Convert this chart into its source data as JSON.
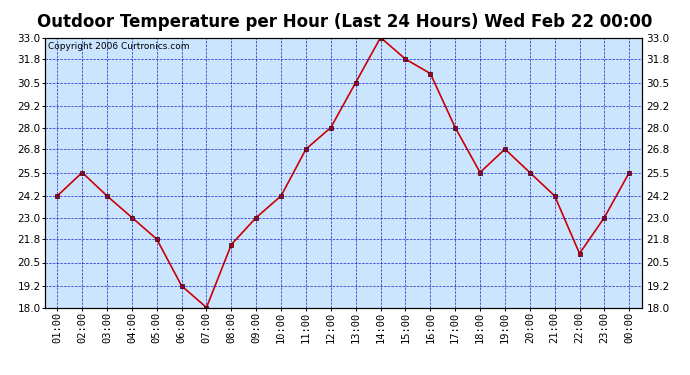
{
  "title": "Outdoor Temperature per Hour (Last 24 Hours) Wed Feb 22 00:00",
  "copyright": "Copyright 2006 Curtronics.com",
  "x_labels": [
    "01:00",
    "02:00",
    "03:00",
    "04:00",
    "05:00",
    "06:00",
    "07:00",
    "08:00",
    "09:00",
    "10:00",
    "11:00",
    "12:00",
    "13:00",
    "14:00",
    "15:00",
    "16:00",
    "17:00",
    "18:00",
    "19:00",
    "20:00",
    "21:00",
    "22:00",
    "23:00",
    "00:00"
  ],
  "y_values": [
    24.2,
    25.5,
    24.2,
    23.0,
    21.8,
    19.2,
    18.0,
    21.5,
    23.0,
    24.2,
    26.8,
    28.0,
    30.5,
    33.0,
    31.8,
    31.0,
    28.0,
    25.5,
    26.8,
    25.5,
    24.2,
    21.0,
    23.0,
    25.5
  ],
  "ylim_min": 18.0,
  "ylim_max": 33.0,
  "y_ticks": [
    18.0,
    19.2,
    20.5,
    21.8,
    23.0,
    24.2,
    25.5,
    26.8,
    28.0,
    29.2,
    30.5,
    31.8,
    33.0
  ],
  "line_color": "#cc0000",
  "marker_color": "#cc0000",
  "outer_bg_color": "#ffffff",
  "plot_bg_color": "#cce5ff",
  "grid_color": "#0000bb",
  "title_fontsize": 12,
  "copyright_fontsize": 6.5,
  "tick_fontsize": 7.5,
  "title_bg_color": "#ffffff"
}
